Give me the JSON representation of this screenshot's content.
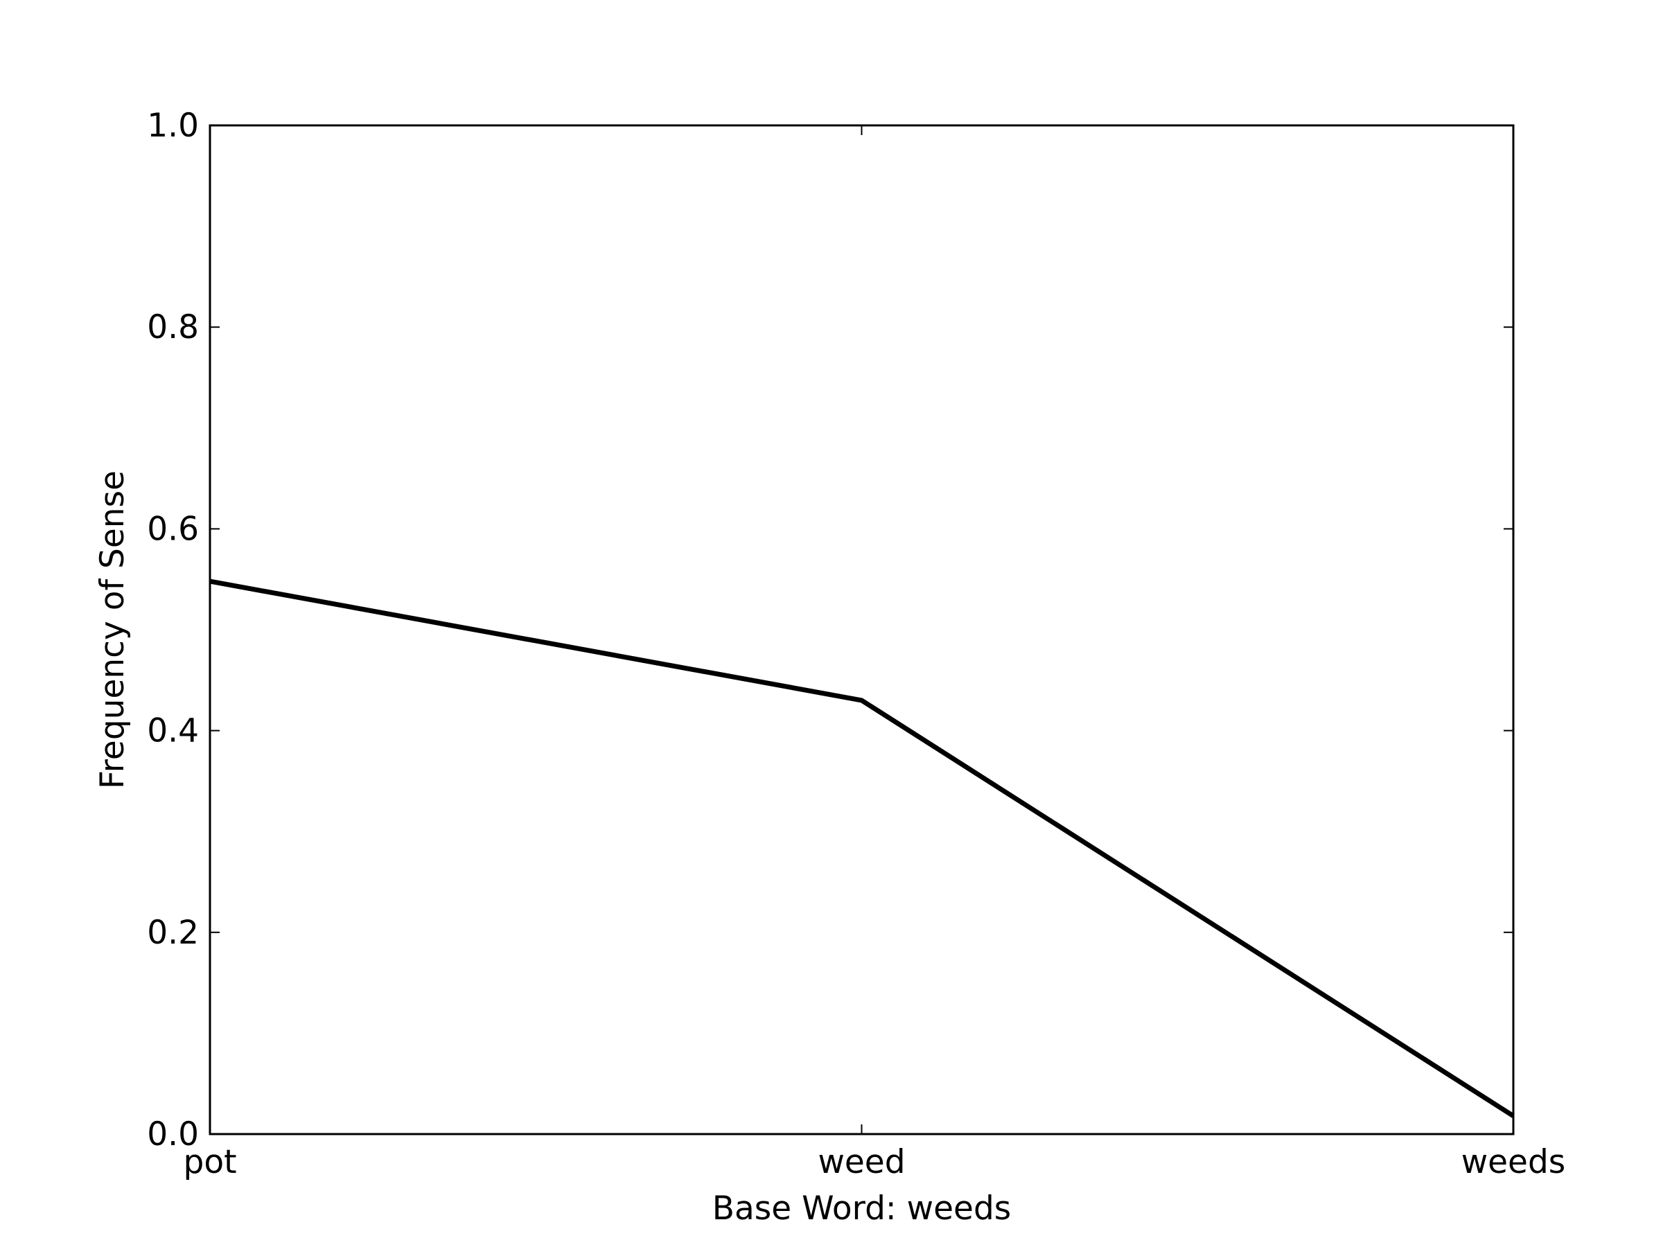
{
  "chart_data": {
    "type": "line",
    "categories": [
      "pot",
      "weed",
      "weeds"
    ],
    "series": [
      {
        "values": [
          0.548,
          0.43,
          0.018
        ],
        "color": "#000000"
      }
    ],
    "xlabel": "Base Word: weeds",
    "ylabel": "Frequency of Sense",
    "ylim": [
      0.0,
      1.0
    ],
    "yticks": [
      "0.0",
      "0.2",
      "0.4",
      "0.6",
      "0.8",
      "1.0"
    ],
    "grid": false,
    "legend": "none"
  }
}
